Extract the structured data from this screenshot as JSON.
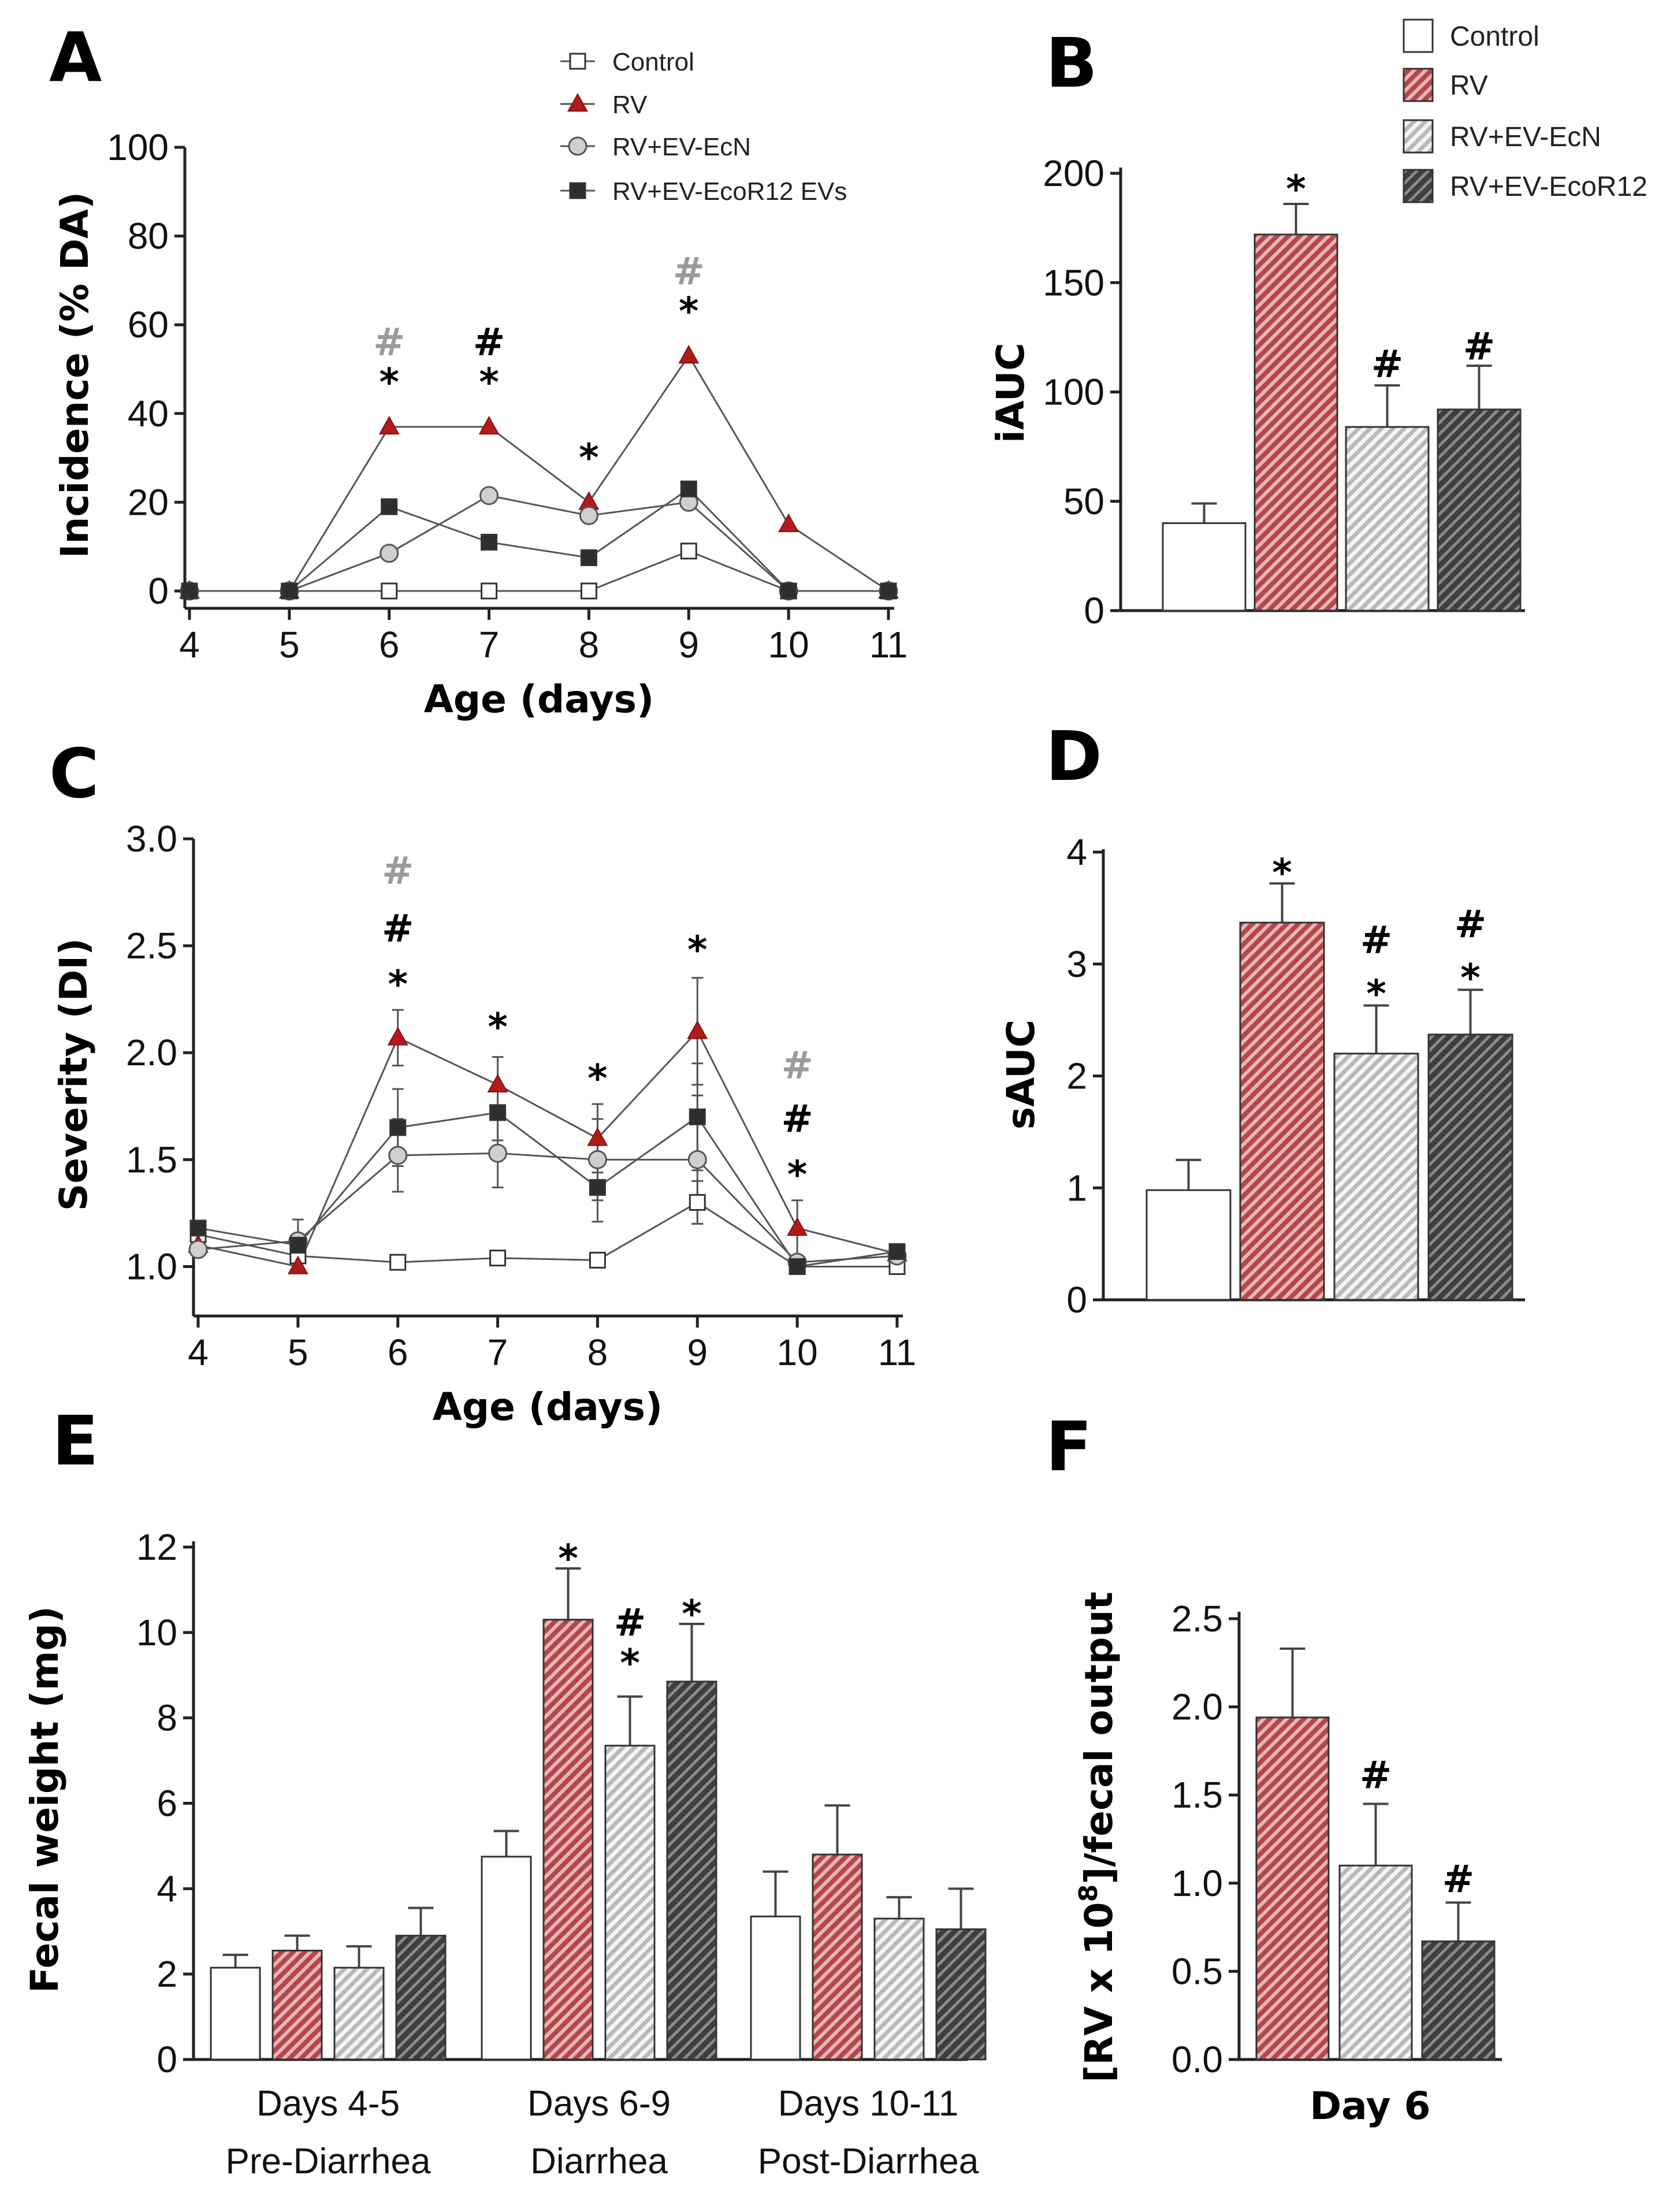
{
  "colors": {
    "control": "#ffffff",
    "rv": "#b5474c",
    "ecn": "#d8d8d8",
    "ecor12": "#4a4a4a",
    "sig_black": "#000000",
    "sig_gray": "#9b9b9b"
  },
  "chart_data": [
    {
      "id": "A",
      "panel_label": "A",
      "type": "line",
      "xlabel": "Age (days)",
      "ylabel": "Incidence (% DA)",
      "x": [
        4,
        5,
        6,
        7,
        8,
        9,
        10,
        11
      ],
      "xticks": [
        "4",
        "5",
        "6",
        "7",
        "8",
        "9",
        "10",
        "11"
      ],
      "yticks": [
        "0",
        "20",
        "40",
        "60",
        "80",
        "100"
      ],
      "ylim": [
        0,
        100
      ],
      "legend": [
        "Control",
        "RV",
        "RV+EV-EcN",
        "RV+EV-EcoR12 EVs"
      ],
      "series": [
        {
          "name": "Control",
          "marker": "square-open",
          "values": [
            0,
            0,
            0,
            0,
            0,
            9,
            0,
            0
          ]
        },
        {
          "name": "RV",
          "marker": "triangle",
          "values": [
            0,
            0,
            37,
            37,
            20,
            53,
            15,
            0
          ]
        },
        {
          "name": "RV+EV-EcN",
          "marker": "circle",
          "values": [
            0,
            0,
            8.5,
            21.5,
            17,
            20,
            0,
            0
          ]
        },
        {
          "name": "RV+EV-EcoR12 EVs",
          "marker": "square",
          "values": [
            0,
            0,
            19,
            11,
            7.5,
            23,
            0,
            0
          ]
        }
      ],
      "annotations": [
        {
          "x": 6,
          "y": 48,
          "text": "*",
          "color": "black"
        },
        {
          "x": 6,
          "y": 57,
          "text": "#",
          "color": "gray"
        },
        {
          "x": 7,
          "y": 48,
          "text": "*",
          "color": "black"
        },
        {
          "x": 7,
          "y": 57,
          "text": "#",
          "color": "black"
        },
        {
          "x": 8,
          "y": 31,
          "text": "*",
          "color": "black"
        },
        {
          "x": 9,
          "y": 64,
          "text": "*",
          "color": "black"
        },
        {
          "x": 9,
          "y": 73,
          "text": "#",
          "color": "gray"
        }
      ]
    },
    {
      "id": "B",
      "panel_label": "B",
      "type": "bar",
      "ylabel": "iAUC",
      "yticks": [
        "0",
        "50",
        "100",
        "150",
        "200"
      ],
      "ylim": [
        0,
        200
      ],
      "legend": [
        "Control",
        "RV",
        "RV+EV-EcN",
        "RV+EV-EcoR12"
      ],
      "bars": [
        {
          "name": "Control",
          "value": 40,
          "err": 9
        },
        {
          "name": "RV",
          "value": 172,
          "err": 14
        },
        {
          "name": "RV+EV-EcN",
          "value": 84,
          "err": 19
        },
        {
          "name": "RV+EV-EcoR12",
          "value": 92,
          "err": 20
        }
      ],
      "annotations": [
        {
          "bar": 1,
          "y": 200,
          "text": "*",
          "color": "black"
        },
        {
          "bar": 2,
          "y": 120,
          "text": "#",
          "color": "black"
        },
        {
          "bar": 3,
          "y": 128,
          "text": "#",
          "color": "black"
        }
      ]
    },
    {
      "id": "C",
      "panel_label": "C",
      "type": "line",
      "xlabel": "Age (days)",
      "ylabel": "Severity (DI)",
      "x": [
        4,
        5,
        6,
        7,
        8,
        9,
        10,
        11
      ],
      "xticks": [
        "4",
        "5",
        "6",
        "7",
        "8",
        "9",
        "10",
        "11"
      ],
      "yticks": [
        "1.0",
        "1.5",
        "2.0",
        "2.5",
        "3.0"
      ],
      "ylim": [
        0.85,
        3.0
      ],
      "series": [
        {
          "name": "Control",
          "marker": "square-open",
          "values": [
            1.15,
            1.05,
            1.02,
            1.04,
            1.03,
            1.3,
            1.0,
            1.0
          ],
          "err": [
            0,
            0,
            0,
            0,
            0,
            0.1,
            0,
            0
          ]
        },
        {
          "name": "RV",
          "marker": "triangle",
          "values": [
            1.1,
            1.0,
            2.07,
            1.85,
            1.6,
            2.1,
            1.18,
            1.06
          ],
          "err": [
            0,
            0,
            0.13,
            0.13,
            0.16,
            0.25,
            0.13,
            0
          ]
        },
        {
          "name": "RV+EV-EcN",
          "marker": "circle",
          "values": [
            1.08,
            1.12,
            1.52,
            1.53,
            1.5,
            1.5,
            1.02,
            1.05
          ],
          "err": [
            0,
            0.1,
            0.17,
            0.16,
            0.19,
            0.3,
            0,
            0
          ]
        },
        {
          "name": "RV+EV-EcoR12 EVs",
          "marker": "square",
          "values": [
            1.18,
            1.1,
            1.65,
            1.72,
            1.37,
            1.7,
            1.0,
            1.07
          ],
          "err": [
            0,
            0,
            0.18,
            0.13,
            0.16,
            0.25,
            0,
            0
          ]
        }
      ],
      "annotations": [
        {
          "x": 6,
          "y": 2.34,
          "text": "*",
          "color": "black"
        },
        {
          "x": 6,
          "y": 2.6,
          "text": "#",
          "color": "black"
        },
        {
          "x": 6,
          "y": 2.87,
          "text": "#",
          "color": "gray"
        },
        {
          "x": 7,
          "y": 2.14,
          "text": "*",
          "color": "black"
        },
        {
          "x": 8,
          "y": 1.9,
          "text": "*",
          "color": "black"
        },
        {
          "x": 9,
          "y": 2.5,
          "text": "*",
          "color": "black"
        },
        {
          "x": 10,
          "y": 1.45,
          "text": "*",
          "color": "black"
        },
        {
          "x": 10,
          "y": 1.71,
          "text": "#",
          "color": "black"
        },
        {
          "x": 10,
          "y": 1.96,
          "text": "#",
          "color": "gray"
        }
      ]
    },
    {
      "id": "D",
      "panel_label": "D",
      "type": "bar",
      "ylabel": "sAUC",
      "yticks": [
        "0",
        "1",
        "2",
        "3",
        "4"
      ],
      "ylim": [
        0,
        4
      ],
      "bars": [
        {
          "name": "Control",
          "value": 0.98,
          "err": 0.27
        },
        {
          "name": "RV",
          "value": 3.37,
          "err": 0.35
        },
        {
          "name": "RV+EV-EcN",
          "value": 2.2,
          "err": 0.43
        },
        {
          "name": "RV+EV-EcoR12",
          "value": 2.37,
          "err": 0.4
        }
      ],
      "annotations": [
        {
          "bar": 1,
          "y": 3.93,
          "text": "*",
          "color": "black"
        },
        {
          "bar": 2,
          "y": 2.85,
          "text": "*",
          "color": "black"
        },
        {
          "bar": 2,
          "y": 3.33,
          "text": "#",
          "color": "black"
        },
        {
          "bar": 3,
          "y": 2.99,
          "text": "*",
          "color": "black"
        },
        {
          "bar": 3,
          "y": 3.47,
          "text": "#",
          "color": "black"
        }
      ]
    },
    {
      "id": "E",
      "panel_label": "E",
      "type": "bar",
      "ylabel": "Fecal weight (mg)",
      "yticks": [
        "0",
        "2",
        "4",
        "6",
        "8",
        "10",
        "12"
      ],
      "ylim": [
        0,
        12
      ],
      "groups": [
        {
          "label": "Days 4-5",
          "sublabel": "Pre-Diarrhea",
          "bars": [
            {
              "name": "Control",
              "value": 2.15,
              "err": 0.3
            },
            {
              "name": "RV",
              "value": 2.55,
              "err": 0.35
            },
            {
              "name": "RV+EV-EcN",
              "value": 2.15,
              "err": 0.5
            },
            {
              "name": "RV+EV-EcoR12",
              "value": 2.9,
              "err": 0.65
            }
          ]
        },
        {
          "label": "Days 6-9",
          "sublabel": "Diarrhea",
          "bars": [
            {
              "name": "Control",
              "value": 4.75,
              "err": 0.6
            },
            {
              "name": "RV",
              "value": 10.3,
              "err": 1.2
            },
            {
              "name": "RV+EV-EcN",
              "value": 7.35,
              "err": 1.15
            },
            {
              "name": "RV+EV-EcoR12",
              "value": 8.85,
              "err": 1.35
            }
          ]
        },
        {
          "label": "Days 10-11",
          "sublabel": "Post-Diarrhea",
          "bars": [
            {
              "name": "Control",
              "value": 3.35,
              "err": 1.05
            },
            {
              "name": "RV",
              "value": 4.8,
              "err": 1.15
            },
            {
              "name": "RV+EV-EcN",
              "value": 3.3,
              "err": 0.5
            },
            {
              "name": "RV+EV-EcoR12",
              "value": 3.05,
              "err": 0.95
            }
          ]
        }
      ],
      "annotations": [
        {
          "group": 1,
          "bar": 1,
          "y": 11.9,
          "text": "*",
          "color": "black"
        },
        {
          "group": 1,
          "bar": 2,
          "y": 9.45,
          "text": "*",
          "color": "black"
        },
        {
          "group": 1,
          "bar": 2,
          "y": 10.4,
          "text": "#",
          "color": "black"
        },
        {
          "group": 1,
          "bar": 3,
          "y": 10.6,
          "text": "*",
          "color": "black"
        }
      ]
    },
    {
      "id": "F",
      "panel_label": "F",
      "type": "bar",
      "ylabel": "[RV x 10^8]/fecal output",
      "ylabel_parts": {
        "pre": "[RV x 10",
        "sup": "8",
        "post": "]/fecal output"
      },
      "xlabel": "Day 6",
      "yticks": [
        "0.0",
        "0.5",
        "1.0",
        "1.5",
        "2.0",
        "2.5"
      ],
      "ylim": [
        0,
        2.5
      ],
      "bars": [
        {
          "name": "RV",
          "value": 1.94,
          "err": 0.39
        },
        {
          "name": "RV+EV-EcN",
          "value": 1.1,
          "err": 0.35
        },
        {
          "name": "RV+EV-EcoR12",
          "value": 0.67,
          "err": 0.22
        }
      ],
      "annotations": [
        {
          "bar": 1,
          "y": 1.67,
          "text": "#",
          "color": "black"
        },
        {
          "bar": 2,
          "y": 1.08,
          "text": "#",
          "color": "black"
        }
      ]
    }
  ]
}
